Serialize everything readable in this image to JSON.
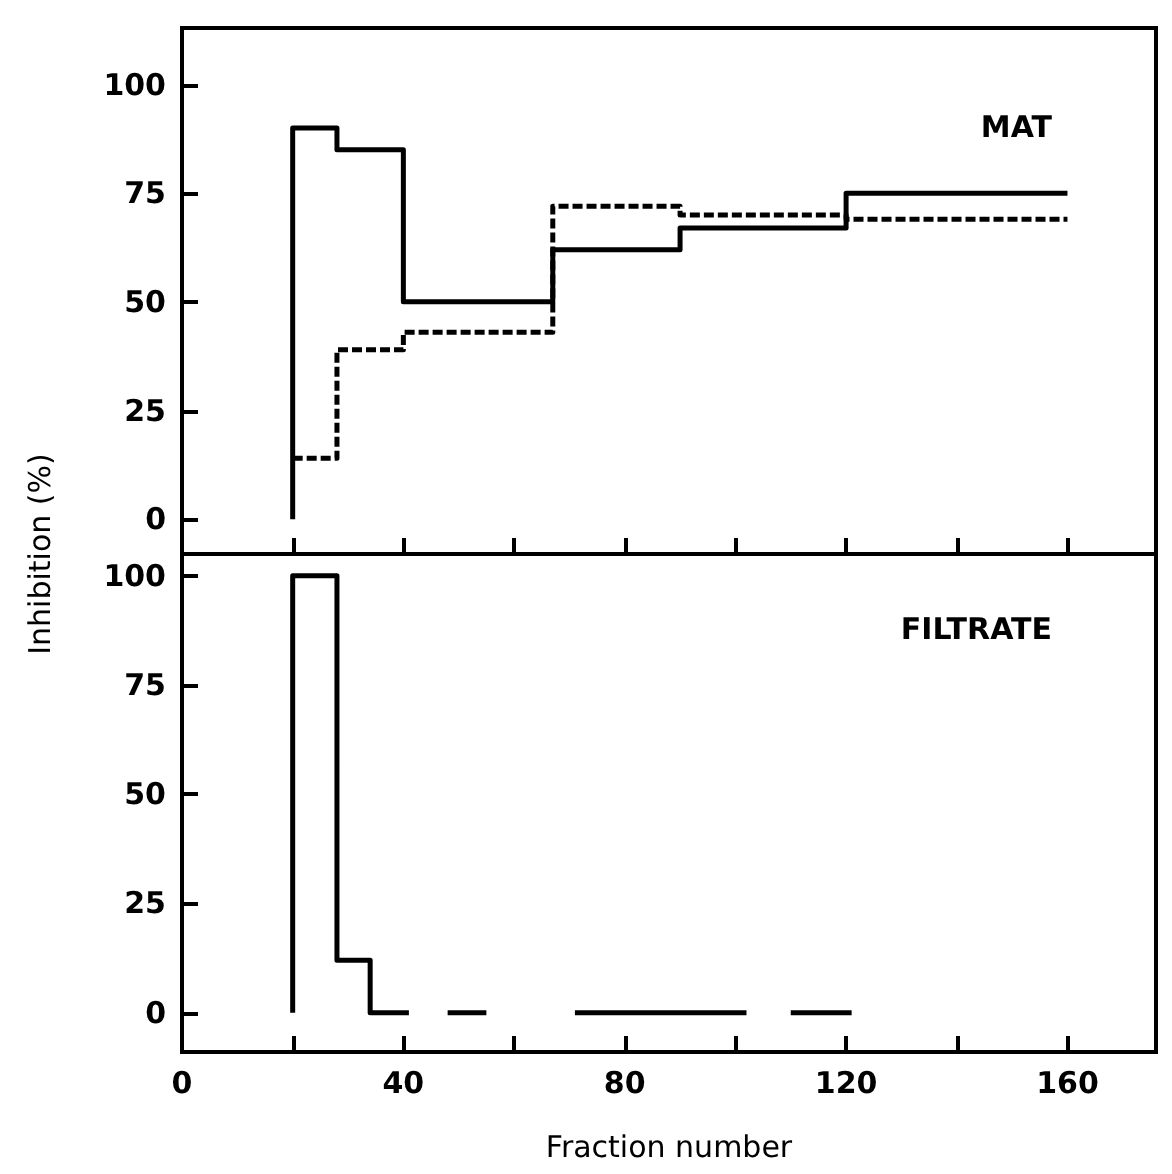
{
  "chart_data": [
    {
      "type": "step",
      "ylabel": "Inhibition (%)",
      "annotations": [
        "MAT"
      ],
      "xlim": [
        0,
        176
      ],
      "xticks": [
        0,
        {
          "value": 20,
          "label": null
        },
        40,
        {
          "value": 60,
          "label": null
        },
        80,
        {
          "value": 100,
          "label": null
        },
        120,
        {
          "value": 140,
          "label": null
        },
        160
      ],
      "ylim": [
        -8,
        113
      ],
      "yticks": [
        0,
        25,
        50,
        75,
        100
      ],
      "tick_labels": "y",
      "marker": "none",
      "series": [
        {
          "color": "#000000",
          "line_style": "solid",
          "x": [
            20,
            20,
            28,
            40,
            67,
            90,
            120,
            160
          ],
          "values": [
            0,
            90,
            85,
            50,
            62,
            67,
            75,
            75
          ]
        },
        {
          "color": "#000000",
          "line_style": "dashed",
          "x": [
            20,
            28,
            40,
            67,
            90,
            120,
            160
          ],
          "values": [
            14,
            39,
            43,
            72,
            70,
            69,
            69
          ]
        }
      ]
    },
    {
      "type": "step",
      "xlabel": "Fraction number",
      "annotations": [
        "FILTRATE"
      ],
      "xlim": [
        0,
        176
      ],
      "xticks": [
        0,
        {
          "value": 20,
          "label": null
        },
        40,
        {
          "value": 60,
          "label": null
        },
        80,
        {
          "value": 100,
          "label": null
        },
        120,
        {
          "value": 140,
          "label": null
        },
        160
      ],
      "ylim": [
        -9,
        105
      ],
      "yticks": [
        0,
        25,
        50,
        75,
        100
      ],
      "marker": "none",
      "series": [
        {
          "color": "#000000",
          "line_style": "solid",
          "x": [
            20,
            20,
            28,
            34,
            41
          ],
          "values": [
            0,
            100,
            12,
            0,
            0
          ]
        },
        {
          "type": "line",
          "color": "#000000",
          "line_style": "solid",
          "x": [
            48,
            55,
            63,
            71,
            102,
            106,
            110,
            121
          ],
          "values": [
            0,
            0,
            null,
            0,
            0,
            null,
            0,
            0
          ]
        }
      ]
    }
  ]
}
